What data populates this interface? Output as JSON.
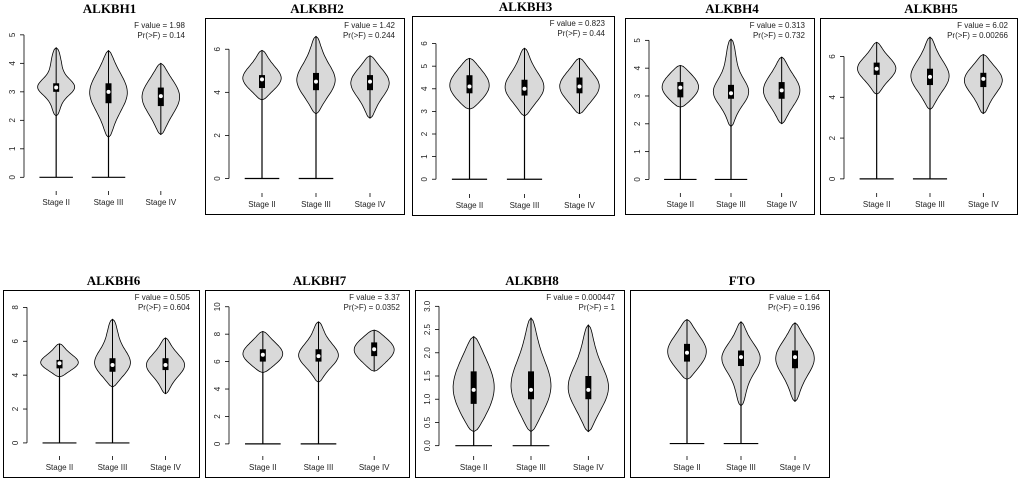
{
  "chart_data": [
    {
      "type": "violin",
      "title": "ALKBH1",
      "annotations": [
        "F value = 1.98",
        "Pr(>F) = 0.14"
      ],
      "categories": [
        "Stage II",
        "Stage III",
        "Stage IV"
      ],
      "violins": [
        {
          "min": 2.15,
          "q1": 3.0,
          "median": 3.15,
          "q3": 3.3,
          "max": 4.55
        },
        {
          "min": 1.4,
          "q1": 2.6,
          "median": 3.0,
          "q3": 3.3,
          "max": 4.45
        },
        {
          "min": 1.5,
          "q1": 2.5,
          "median": 2.85,
          "q3": 3.15,
          "max": 4.0
        }
      ],
      "baseline": [
        0,
        0,
        null
      ],
      "ylim": [
        -0.2,
        5.1
      ],
      "yticks": [
        0,
        1,
        2,
        3,
        4,
        5
      ],
      "color": "#d9d9d9"
    },
    {
      "type": "violin",
      "title": "ALKBH2",
      "annotations": [
        "F value = 1.42",
        "Pr(>F) = 0.244"
      ],
      "categories": [
        "Stage II",
        "Stage III",
        "Stage IV"
      ],
      "violins": [
        {
          "min": 3.65,
          "q1": 4.2,
          "median": 4.6,
          "q3": 4.8,
          "max": 5.95
        },
        {
          "min": 3.0,
          "q1": 4.1,
          "median": 4.5,
          "q3": 4.9,
          "max": 6.6
        },
        {
          "min": 2.8,
          "q1": 4.1,
          "median": 4.5,
          "q3": 4.8,
          "max": 5.7
        }
      ],
      "baseline": [
        0,
        0,
        null
      ],
      "ylim": [
        -0.3,
        6.8
      ],
      "yticks": [
        0,
        2,
        4,
        6
      ],
      "color": "#d9d9d9"
    },
    {
      "type": "violin",
      "title": "ALKBH3",
      "annotations": [
        "F value = 0.823",
        "Pr(>F) = 0.44"
      ],
      "categories": [
        "Stage II",
        "Stage III",
        "Stage IV"
      ],
      "violins": [
        {
          "min": 3.1,
          "q1": 3.8,
          "median": 4.1,
          "q3": 4.6,
          "max": 5.35
        },
        {
          "min": 2.8,
          "q1": 3.7,
          "median": 4.0,
          "q3": 4.4,
          "max": 5.8
        },
        {
          "min": 2.9,
          "q1": 3.8,
          "median": 4.1,
          "q3": 4.5,
          "max": 5.35
        }
      ],
      "baseline": [
        0,
        0,
        null
      ],
      "ylim": [
        -0.3,
        6.6
      ],
      "yticks": [
        0,
        1,
        2,
        3,
        4,
        5,
        6
      ],
      "color": "#d9d9d9"
    },
    {
      "type": "violin",
      "title": "ALKBH4",
      "annotations": [
        "F value = 0.313",
        "Pr(>F) = 0.732"
      ],
      "categories": [
        "Stage II",
        "Stage III",
        "Stage IV"
      ],
      "violins": [
        {
          "min": 2.6,
          "q1": 2.95,
          "median": 3.3,
          "q3": 3.5,
          "max": 4.1
        },
        {
          "min": 1.9,
          "q1": 2.9,
          "median": 3.1,
          "q3": 3.4,
          "max": 5.05
        },
        {
          "min": 2.0,
          "q1": 2.9,
          "median": 3.2,
          "q3": 3.5,
          "max": 4.4
        }
      ],
      "baseline": [
        0,
        0,
        null
      ],
      "ylim": [
        -0.2,
        5.3
      ],
      "yticks": [
        0,
        1,
        2,
        3,
        4,
        5
      ],
      "color": "#d9d9d9"
    },
    {
      "type": "violin",
      "title": "ALKBH5",
      "annotations": [
        "F value = 6.02",
        "Pr(>F) = 0.00266"
      ],
      "categories": [
        "Stage II",
        "Stage III",
        "Stage IV"
      ],
      "violins": [
        {
          "min": 4.15,
          "q1": 5.1,
          "median": 5.4,
          "q3": 5.7,
          "max": 6.7
        },
        {
          "min": 3.4,
          "q1": 4.6,
          "median": 5.0,
          "q3": 5.4,
          "max": 6.95
        },
        {
          "min": 3.2,
          "q1": 4.5,
          "median": 4.9,
          "q3": 5.2,
          "max": 6.1
        }
      ],
      "baseline": [
        0,
        0,
        null
      ],
      "ylim": [
        -0.3,
        7.2
      ],
      "yticks": [
        0,
        2,
        4,
        6
      ],
      "color": "#d9d9d9"
    },
    {
      "type": "violin",
      "title": "ALKBH6",
      "annotations": [
        "F value = 0.505",
        "Pr(>F) = 0.604"
      ],
      "categories": [
        "Stage II",
        "Stage III",
        "Stage IV"
      ],
      "violins": [
        {
          "min": 3.9,
          "q1": 4.4,
          "median": 4.7,
          "q3": 4.9,
          "max": 5.85
        },
        {
          "min": 3.3,
          "q1": 4.2,
          "median": 4.6,
          "q3": 5.0,
          "max": 7.3
        },
        {
          "min": 2.9,
          "q1": 4.3,
          "median": 4.6,
          "q3": 5.0,
          "max": 6.2
        }
      ],
      "baseline": [
        0,
        0,
        null
      ],
      "ylim": [
        -0.3,
        8.2
      ],
      "yticks": [
        0,
        2,
        4,
        6,
        8
      ],
      "color": "#d9d9d9"
    },
    {
      "type": "violin",
      "title": "ALKBH7",
      "annotations": [
        "F value = 3.37",
        "Pr(>F) = 0.0352"
      ],
      "categories": [
        "Stage II",
        "Stage III",
        "Stage IV"
      ],
      "violins": [
        {
          "min": 5.2,
          "q1": 6.0,
          "median": 6.5,
          "q3": 6.9,
          "max": 8.2
        },
        {
          "min": 4.5,
          "q1": 6.0,
          "median": 6.4,
          "q3": 6.9,
          "max": 8.9
        },
        {
          "min": 5.3,
          "q1": 6.4,
          "median": 6.9,
          "q3": 7.4,
          "max": 8.3
        }
      ],
      "baseline": [
        0,
        0,
        null
      ],
      "ylim": [
        -0.3,
        10.2
      ],
      "yticks": [
        0,
        2,
        4,
        6,
        8,
        10
      ],
      "color": "#d9d9d9"
    },
    {
      "type": "violin",
      "title": "ALKBH8",
      "annotations": [
        "F value = 0.000447",
        "Pr(>F) = 1"
      ],
      "categories": [
        "Stage II",
        "Stage III",
        "Stage IV"
      ],
      "violins": [
        {
          "min": 0.3,
          "q1": 0.9,
          "median": 1.2,
          "q3": 1.6,
          "max": 2.35
        },
        {
          "min": 0.3,
          "q1": 1.0,
          "median": 1.2,
          "q3": 1.6,
          "max": 2.75
        },
        {
          "min": 0.3,
          "q1": 1.0,
          "median": 1.2,
          "q3": 1.5,
          "max": 2.6
        }
      ],
      "baseline": [
        0,
        0,
        null
      ],
      "ylim": [
        -0.05,
        3.05
      ],
      "yticks": [
        {
          "value": 0,
          "label": "0.0"
        },
        0.5,
        {
          "value": 1,
          "label": "1.0"
        },
        1.5,
        {
          "value": 2,
          "label": "2.0"
        },
        2.5,
        {
          "value": 3,
          "label": "3.0"
        }
      ],
      "color": "#d9d9d9"
    },
    {
      "type": "violin",
      "title": "FTO",
      "annotations": [
        "F value = 1.64",
        "Pr(>F) = 0.196"
      ],
      "categories": [
        "Stage II",
        "Stage III",
        "Stage IV"
      ],
      "violins": [
        {
          "min": 2.9,
          "q1": 3.7,
          "median": 4.1,
          "q3": 4.5,
          "max": 5.6
        },
        {
          "min": 1.7,
          "q1": 3.5,
          "median": 3.9,
          "q3": 4.2,
          "max": 5.5
        },
        {
          "min": 1.9,
          "q1": 3.4,
          "median": 3.9,
          "q3": 4.2,
          "max": 5.45
        }
      ],
      "baseline": [
        0,
        0,
        null
      ],
      "ylim": [
        -0.2,
        6.3
      ],
      "color": "#d9d9d9"
    }
  ]
}
